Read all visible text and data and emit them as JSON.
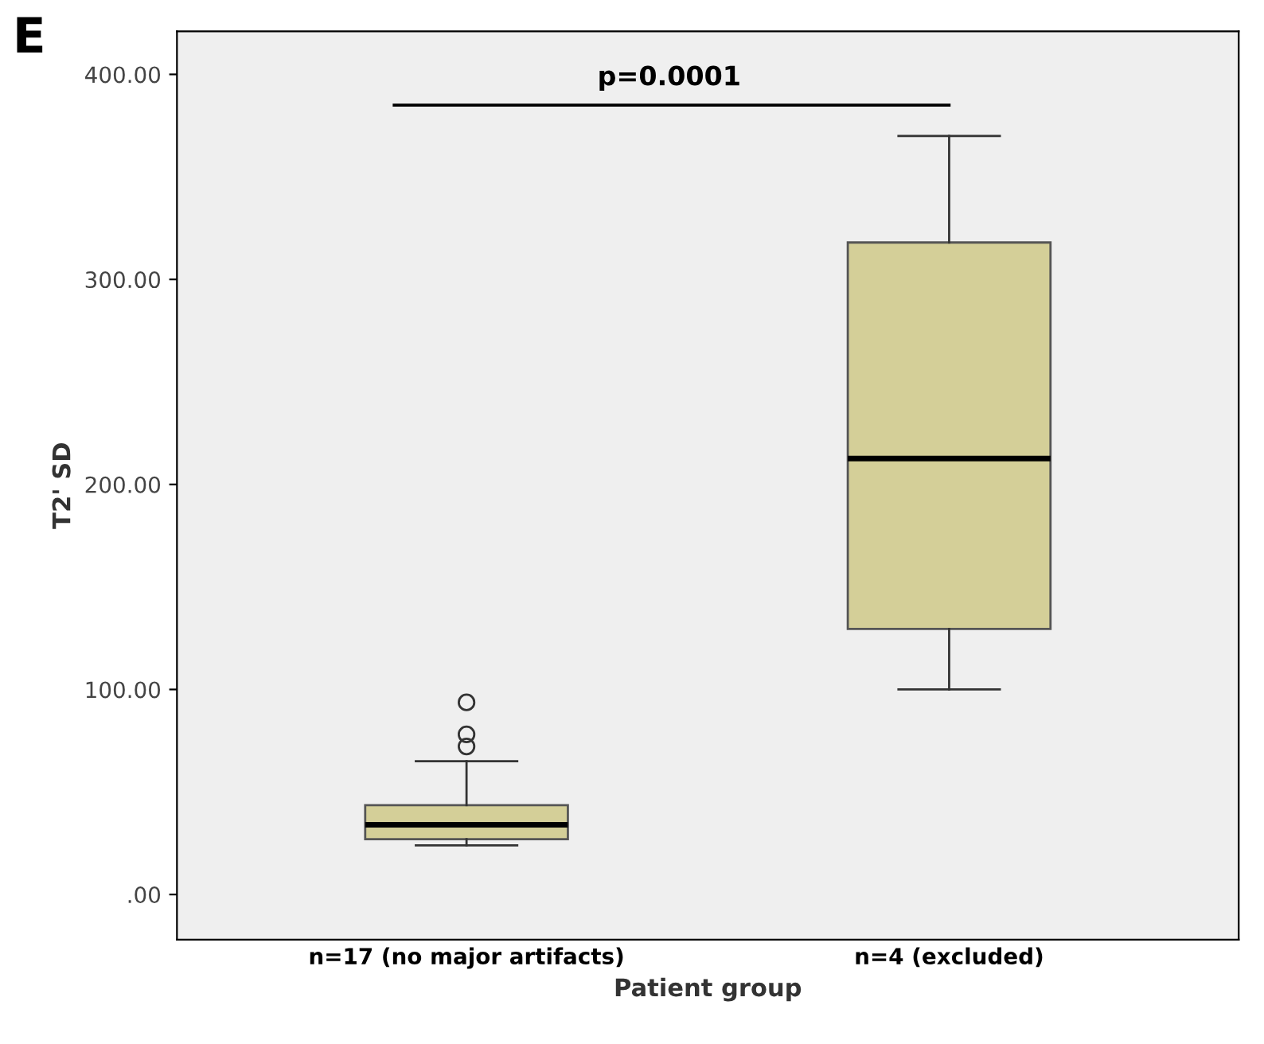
{
  "chart_data": {
    "type": "box",
    "title": "E",
    "xlabel": "Patient group",
    "ylabel": "T2' SD",
    "categories": [
      "n=17 (no major artifacts)",
      "n=4 (excluded)"
    ],
    "boxes": [
      {
        "low": 24,
        "q1": 27,
        "median": 34,
        "q3": 43.6,
        "high": 65,
        "outliers": [
          72.2,
          78.1,
          93.7
        ]
      },
      {
        "low": 100,
        "q1": 129.5,
        "median": 212.6,
        "q3": 318,
        "high": 370
      }
    ],
    "color": "#d4cf98",
    "ylim": [
      -22,
      421
    ],
    "yticks": [
      {
        "value": 0,
        "label": ".00"
      },
      {
        "value": 100,
        "label": "100.00"
      },
      {
        "value": 200,
        "label": "200.00"
      },
      {
        "value": 300,
        "label": "300.00"
      },
      {
        "value": 400,
        "label": "400.00"
      }
    ],
    "annotations": [
      "p=0.0001"
    ],
    "grid": false
  }
}
